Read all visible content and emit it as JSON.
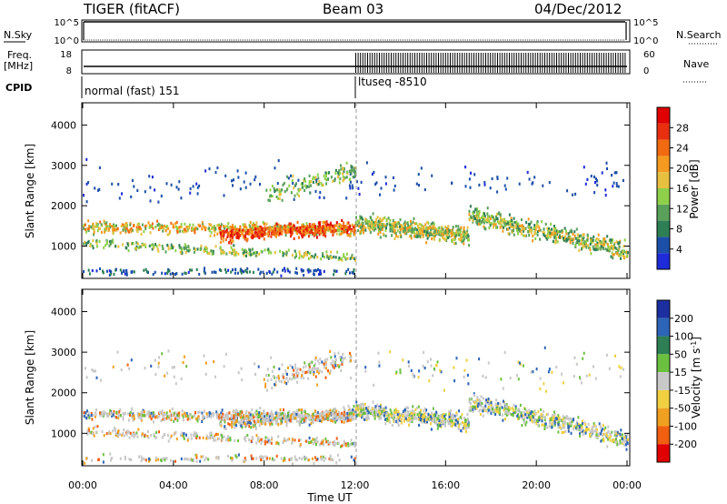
{
  "header": {
    "title": "TIGER (fitACF)",
    "beam": "Beam 03",
    "date": "04/Dec/2012"
  },
  "side_labels": {
    "n_sky": "N.Sky",
    "n_search": "N.Search",
    "freq_line1": "Freq.",
    "freq_line2": "[MHz]",
    "nave": "Nave",
    "cpid": "CPID"
  },
  "chart_data": [
    {
      "type": "line",
      "name": "noise-panel",
      "left_ticks": [
        "10^5",
        "10^0"
      ],
      "right_ticks": [
        "10^5",
        "10^0"
      ],
      "x": [
        "00:00",
        "24:00"
      ],
      "series": [
        {
          "name": "N.Sky",
          "values": [
            100000,
            100000
          ]
        },
        {
          "name": "N.Search",
          "values": [
            1,
            1
          ]
        }
      ]
    },
    {
      "type": "line",
      "name": "freq-nave-panel",
      "left_ticks": [
        "18",
        "8"
      ],
      "right_ticks": [
        "60",
        "0"
      ],
      "ylim_left": [
        8,
        18
      ],
      "ylim_right": [
        0,
        60
      ],
      "x": [
        "00:00",
        "12:00",
        "24:00"
      ],
      "series": [
        {
          "name": "Freq.",
          "values": [
            10.2,
            10.2,
            10.2
          ]
        },
        {
          "name": "Nave",
          "values": [
            0,
            0,
            60
          ]
        }
      ]
    },
    {
      "type": "table",
      "name": "cpid-panel",
      "segments": [
        {
          "start": "00:00",
          "label": "normal (fast) 151"
        },
        {
          "start": "12:00",
          "label": "ltuseq -8510"
        }
      ]
    },
    {
      "type": "heatmap",
      "name": "power-panel",
      "ylabel": "Slant Range [km]",
      "yticks": [
        1000,
        2000,
        3000,
        4000
      ],
      "ylim": [
        200,
        4550
      ],
      "xlim": [
        0,
        24
      ],
      "colorbar": {
        "label": "Power [dB]",
        "ticks": [
          "4",
          "8",
          "12",
          "16",
          "20",
          "24",
          "28"
        ],
        "colors": [
          "#1d2bd8",
          "#1c4fa8",
          "#2e7f55",
          "#5aa05a",
          "#8fd04a",
          "#e8c040",
          "#f59a20",
          "#f26a10",
          "#e83010",
          "#e00000"
        ]
      }
    },
    {
      "type": "heatmap",
      "name": "velocity-panel",
      "xlabel": "Time UT",
      "ylabel": "Slant Range [km]",
      "xticks": [
        "00:00",
        "04:00",
        "08:00",
        "12:00",
        "16:00",
        "20:00",
        "00:00"
      ],
      "yticks": [
        1000,
        2000,
        3000,
        4000
      ],
      "ylim": [
        200,
        4550
      ],
      "xlim": [
        0,
        24
      ],
      "colorbar": {
        "label": "Velocity [m s",
        "label_superscript": "-1",
        "label_close": "]",
        "ticks": [
          "200",
          "100",
          "50",
          "15",
          "-15",
          "-50",
          "-100",
          "-200"
        ],
        "colors": [
          "#1c2fa0",
          "#2c64b8",
          "#2e7f55",
          "#6cc040",
          "#c8c8c8",
          "#f0d040",
          "#f0a020",
          "#f06010",
          "#e00000"
        ]
      }
    }
  ]
}
